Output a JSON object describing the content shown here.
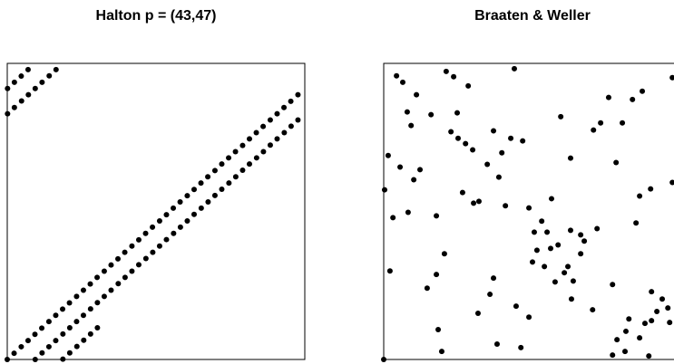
{
  "chart_data": [
    {
      "type": "scatter",
      "title": "Halton p = (43,47)",
      "color": "#000000",
      "xlim": [
        0,
        1
      ],
      "ylim": [
        0,
        1
      ],
      "x": [
        0,
        0.023,
        0.047,
        0.07,
        0.093,
        0.116,
        0.14,
        0.163,
        0.186,
        0.209,
        0.233,
        0.256,
        0.279,
        0.302,
        0.326,
        0.349,
        0.372,
        0.395,
        0.419,
        0.442,
        0.465,
        0.488,
        0.512,
        0.535,
        0.558,
        0.581,
        0.605,
        0.628,
        0.651,
        0.674,
        0.698,
        0.721,
        0.744,
        0.767,
        0.791,
        0.814,
        0.837,
        0.86,
        0.884,
        0.907,
        0.93,
        0.953,
        0.977,
        0.001,
        0.024,
        0.047,
        0.07,
        0.094,
        0.117,
        0.14,
        0.163,
        0.187,
        0.21,
        0.233,
        0.256,
        0.28,
        0.303,
        0.326,
        0.349,
        0.373,
        0.396,
        0.419,
        0.442,
        0.466,
        0.489,
        0.512,
        0.535,
        0.559,
        0.582,
        0.605,
        0.628,
        0.652,
        0.675,
        0.698,
        0.721,
        0.745,
        0.768,
        0.791,
        0.814,
        0.838,
        0.861,
        0.884,
        0.907,
        0.931,
        0.954,
        0.977,
        0.001,
        0.024,
        0.048,
        0.071,
        0.094,
        0.117,
        0.141,
        0.164,
        0.187,
        0.21,
        0.234,
        0.257,
        0.28,
        0.303
      ],
      "values": [
        0,
        0.021,
        0.043,
        0.064,
        0.085,
        0.106,
        0.128,
        0.149,
        0.17,
        0.191,
        0.213,
        0.234,
        0.255,
        0.277,
        0.298,
        0.319,
        0.34,
        0.362,
        0.383,
        0.404,
        0.426,
        0.447,
        0.468,
        0.489,
        0.511,
        0.532,
        0.553,
        0.574,
        0.596,
        0.617,
        0.638,
        0.66,
        0.681,
        0.702,
        0.723,
        0.745,
        0.766,
        0.787,
        0.809,
        0.83,
        0.851,
        0.872,
        0.894,
        0.915,
        0.936,
        0.957,
        0.979,
        0,
        0.022,
        0.043,
        0.064,
        0.086,
        0.107,
        0.128,
        0.149,
        0.171,
        0.192,
        0.213,
        0.234,
        0.256,
        0.277,
        0.298,
        0.32,
        0.341,
        0.362,
        0.383,
        0.405,
        0.426,
        0.447,
        0.468,
        0.49,
        0.511,
        0.532,
        0.554,
        0.575,
        0.596,
        0.617,
        0.639,
        0.66,
        0.681,
        0.702,
        0.724,
        0.745,
        0.766,
        0.788,
        0.809,
        0.83,
        0.851,
        0.873,
        0.894,
        0.915,
        0.936,
        0.958,
        0.979,
        0.001,
        0.022,
        0.044,
        0.065,
        0.086,
        0.107
      ]
    },
    {
      "type": "scatter",
      "title": "Braaten & Weller",
      "color": "#000000",
      "xlim": [
        0,
        1
      ],
      "ylim": [
        0,
        1
      ],
      "x": [
        0.043,
        0.064,
        0.11,
        0.079,
        0.092,
        0.159,
        0.21,
        0.235,
        0.284,
        0.439,
        0.247,
        0.226,
        0.25,
        0.275,
        0.299,
        0.348,
        0.387,
        0.397,
        0.427,
        0.467,
        0.369,
        0.595,
        0.705,
        0.729,
        0.756,
        0.802,
        0.836,
        0.869,
        0.628,
        0.781,
        0.97,
        0.015,
        0.055,
        0.122,
        0.101,
        0.003,
        0.031,
        0.082,
        0.177,
        0.265,
        0.302,
        0.32,
        0.409,
        0.488,
        0.564,
        0.531,
        0.506,
        0.549,
        0.586,
        0.628,
        0.662,
        0.674,
        0.717,
        0.662,
        0.619,
        0.561,
        0.515,
        0.5,
        0.54,
        0.607,
        0.637,
        0.576,
        0.848,
        0.86,
        0.897,
        0.97,
        0.204,
        0.177,
        0.146,
        0.021,
        0.369,
        0.357,
        0.317,
        0.445,
        0.488,
        0.631,
        0.702,
        0.769,
        0.9,
        0.936,
        0.918,
        0.955,
        0.961,
        0.9,
        0.878,
        0.824,
        0.814,
        0.86,
        0.784,
        0.811,
        0.891,
        0.769,
        0.183,
        0.195,
        0.381,
        0.461,
        0
      ],
      "values": [
        0.958,
        0.936,
        0.894,
        0.836,
        0.79,
        0.827,
        0.973,
        0.955,
        0.924,
        0.982,
        0.833,
        0.769,
        0.747,
        0.729,
        0.708,
        0.659,
        0.616,
        0.698,
        0.747,
        0.738,
        0.772,
        0.82,
        0.775,
        0.799,
        0.885,
        0.799,
        0.878,
        0.906,
        0.68,
        0.665,
        0.952,
        0.689,
        0.65,
        0.641,
        0.607,
        0.573,
        0.479,
        0.497,
        0.485,
        0.564,
        0.528,
        0.534,
        0.519,
        0.512,
        0.543,
        0.467,
        0.43,
        0.43,
        0.387,
        0.436,
        0.421,
        0.4,
        0.442,
        0.357,
        0.314,
        0.375,
        0.369,
        0.329,
        0.314,
        0.293,
        0.265,
        0.262,
        0.461,
        0.552,
        0.576,
        0.598,
        0.357,
        0.287,
        0.241,
        0.299,
        0.275,
        0.22,
        0.156,
        0.18,
        0.143,
        0.204,
        0.168,
        0.253,
        0.229,
        0.204,
        0.162,
        0.174,
        0.125,
        0.131,
        0.122,
        0.137,
        0.095,
        0.073,
        0.067,
        0.027,
        0.012,
        0.015,
        0.101,
        0.027,
        0.052,
        0.04,
        0
      ]
    }
  ]
}
